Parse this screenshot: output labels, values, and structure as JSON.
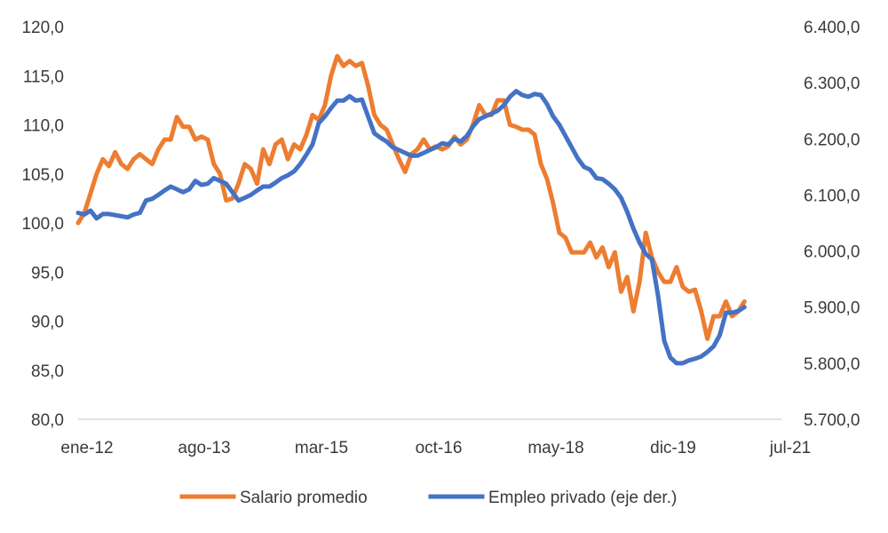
{
  "chart_data": {
    "type": "line",
    "title": "",
    "xlabel": "",
    "ylabel_left": "",
    "ylabel_right": "",
    "x_tick_labels": [
      "ene-12",
      "ago-13",
      "mar-15",
      "oct-16",
      "may-18",
      "dic-19",
      "jul-21"
    ],
    "x_range_months": [
      0,
      114
    ],
    "y_left": {
      "range": [
        80,
        120
      ],
      "ticks": [
        80,
        85,
        90,
        95,
        100,
        105,
        110,
        115,
        120
      ],
      "tick_labels": [
        "80,0",
        "85,0",
        "90,0",
        "95,0",
        "100,0",
        "105,0",
        "110,0",
        "115,0",
        "120,0"
      ]
    },
    "y_right": {
      "range": [
        5700,
        6400
      ],
      "ticks": [
        5700,
        5800,
        5900,
        6000,
        6100,
        6200,
        6300,
        6400
      ],
      "tick_labels": [
        "5.700,0",
        "5.800,0",
        "5.900,0",
        "6.000,0",
        "6.100,0",
        "6.200,0",
        "6.300,0",
        "6.400,0"
      ]
    },
    "grid": false,
    "legend_position": "bottom",
    "series": [
      {
        "name": "Salario promedio",
        "axis": "left",
        "color": "#ED7D31",
        "points": [
          [
            0,
            100.0
          ],
          [
            1,
            101.0
          ],
          [
            2,
            103.0
          ],
          [
            3,
            105.0
          ],
          [
            4,
            106.5
          ],
          [
            5,
            105.8
          ],
          [
            6,
            107.2
          ],
          [
            7,
            106.0
          ],
          [
            8,
            105.5
          ],
          [
            9,
            106.5
          ],
          [
            10,
            107.0
          ],
          [
            11,
            106.5
          ],
          [
            12,
            106.0
          ],
          [
            13,
            107.5
          ],
          [
            14,
            108.5
          ],
          [
            15,
            108.5
          ],
          [
            16,
            110.8
          ],
          [
            17,
            109.8
          ],
          [
            18,
            109.8
          ],
          [
            19,
            108.5
          ],
          [
            20,
            108.8
          ],
          [
            21,
            108.5
          ],
          [
            22,
            106.0
          ],
          [
            23,
            105.0
          ],
          [
            24,
            102.3
          ],
          [
            25,
            102.5
          ],
          [
            26,
            104.0
          ],
          [
            27,
            106.0
          ],
          [
            28,
            105.5
          ],
          [
            29,
            104.0
          ],
          [
            30,
            107.5
          ],
          [
            31,
            106.0
          ],
          [
            32,
            108.0
          ],
          [
            33,
            108.5
          ],
          [
            34,
            106.5
          ],
          [
            35,
            108.0
          ],
          [
            36,
            107.5
          ],
          [
            37,
            109.0
          ],
          [
            38,
            111.0
          ],
          [
            39,
            110.5
          ],
          [
            40,
            112.0
          ],
          [
            41,
            115.0
          ],
          [
            42,
            117.0
          ],
          [
            43,
            116.0
          ],
          [
            44,
            116.5
          ],
          [
            45,
            116.0
          ],
          [
            46,
            116.3
          ],
          [
            47,
            114.0
          ],
          [
            48,
            111.0
          ],
          [
            49,
            110.0
          ],
          [
            50,
            109.5
          ],
          [
            51,
            108.0
          ],
          [
            52,
            106.5
          ],
          [
            53,
            105.2
          ],
          [
            54,
            107.0
          ],
          [
            55,
            107.5
          ],
          [
            56,
            108.5
          ],
          [
            57,
            107.5
          ],
          [
            58,
            107.8
          ],
          [
            59,
            107.5
          ],
          [
            60,
            107.8
          ],
          [
            61,
            108.8
          ],
          [
            62,
            108.0
          ],
          [
            63,
            108.5
          ],
          [
            64,
            110.0
          ],
          [
            65,
            112.0
          ],
          [
            66,
            111.0
          ],
          [
            67,
            111.0
          ],
          [
            68,
            112.5
          ],
          [
            69,
            112.5
          ],
          [
            70,
            110.0
          ],
          [
            71,
            109.8
          ],
          [
            72,
            109.5
          ],
          [
            73,
            109.5
          ],
          [
            74,
            109.0
          ],
          [
            75,
            106.0
          ],
          [
            76,
            104.5
          ],
          [
            77,
            102.0
          ],
          [
            78,
            99.0
          ],
          [
            79,
            98.5
          ],
          [
            80,
            97.0
          ],
          [
            81,
            97.0
          ],
          [
            82,
            97.0
          ],
          [
            83,
            98.0
          ],
          [
            84,
            96.5
          ],
          [
            85,
            97.5
          ],
          [
            86,
            95.5
          ],
          [
            87,
            97.0
          ],
          [
            88,
            93.0
          ],
          [
            89,
            94.5
          ],
          [
            90,
            91.0
          ],
          [
            91,
            94.0
          ],
          [
            92,
            99.0
          ],
          [
            93,
            96.5
          ],
          [
            94,
            95.0
          ],
          [
            95,
            94.0
          ],
          [
            96,
            94.0
          ],
          [
            97,
            95.5
          ],
          [
            98,
            93.5
          ],
          [
            99,
            93.0
          ],
          [
            100,
            93.2
          ],
          [
            101,
            91.0
          ],
          [
            102,
            88.2
          ],
          [
            103,
            90.5
          ],
          [
            104,
            90.5
          ],
          [
            105,
            92.0
          ],
          [
            106,
            90.5
          ],
          [
            107,
            91.0
          ],
          [
            108,
            92.0
          ]
        ]
      },
      {
        "name": "Empleo privado (eje der.)",
        "axis": "right",
        "color": "#4472C4",
        "points": [
          [
            0,
            6068
          ],
          [
            1,
            6065
          ],
          [
            2,
            6072
          ],
          [
            3,
            6058
          ],
          [
            4,
            6066
          ],
          [
            5,
            6066
          ],
          [
            6,
            6064
          ],
          [
            7,
            6062
          ],
          [
            8,
            6060
          ],
          [
            9,
            6065
          ],
          [
            10,
            6068
          ],
          [
            11,
            6090
          ],
          [
            12,
            6093
          ],
          [
            13,
            6100
          ],
          [
            14,
            6108
          ],
          [
            15,
            6115
          ],
          [
            16,
            6110
          ],
          [
            17,
            6105
          ],
          [
            18,
            6110
          ],
          [
            19,
            6125
          ],
          [
            20,
            6118
          ],
          [
            21,
            6120
          ],
          [
            22,
            6130
          ],
          [
            23,
            6125
          ],
          [
            24,
            6120
          ],
          [
            25,
            6105
          ],
          [
            26,
            6090
          ],
          [
            27,
            6095
          ],
          [
            28,
            6100
          ],
          [
            29,
            6108
          ],
          [
            30,
            6115
          ],
          [
            31,
            6115
          ],
          [
            32,
            6122
          ],
          [
            33,
            6130
          ],
          [
            34,
            6135
          ],
          [
            35,
            6142
          ],
          [
            36,
            6155
          ],
          [
            37,
            6172
          ],
          [
            38,
            6190
          ],
          [
            39,
            6228
          ],
          [
            40,
            6240
          ],
          [
            41,
            6255
          ],
          [
            42,
            6268
          ],
          [
            43,
            6268
          ],
          [
            44,
            6276
          ],
          [
            45,
            6268
          ],
          [
            46,
            6270
          ],
          [
            47,
            6240
          ],
          [
            48,
            6210
          ],
          [
            49,
            6202
          ],
          [
            50,
            6195
          ],
          [
            51,
            6185
          ],
          [
            52,
            6180
          ],
          [
            53,
            6175
          ],
          [
            54,
            6170
          ],
          [
            55,
            6170
          ],
          [
            56,
            6175
          ],
          [
            57,
            6180
          ],
          [
            58,
            6185
          ],
          [
            59,
            6192
          ],
          [
            60,
            6190
          ],
          [
            61,
            6200
          ],
          [
            62,
            6195
          ],
          [
            63,
            6205
          ],
          [
            64,
            6222
          ],
          [
            65,
            6235
          ],
          [
            66,
            6240
          ],
          [
            67,
            6245
          ],
          [
            68,
            6250
          ],
          [
            69,
            6260
          ],
          [
            70,
            6275
          ],
          [
            71,
            6285
          ],
          [
            72,
            6278
          ],
          [
            73,
            6275
          ],
          [
            74,
            6280
          ],
          [
            75,
            6278
          ],
          [
            76,
            6262
          ],
          [
            77,
            6240
          ],
          [
            78,
            6225
          ],
          [
            79,
            6205
          ],
          [
            80,
            6185
          ],
          [
            81,
            6165
          ],
          [
            82,
            6150
          ],
          [
            83,
            6145
          ],
          [
            84,
            6130
          ],
          [
            85,
            6128
          ],
          [
            86,
            6120
          ],
          [
            87,
            6110
          ],
          [
            88,
            6095
          ],
          [
            89,
            6070
          ],
          [
            90,
            6040
          ],
          [
            91,
            6015
          ],
          [
            92,
            5995
          ],
          [
            93,
            5985
          ],
          [
            94,
            5920
          ],
          [
            95,
            5840
          ],
          [
            96,
            5810
          ],
          [
            97,
            5800
          ],
          [
            98,
            5800
          ],
          [
            99,
            5805
          ],
          [
            100,
            5808
          ],
          [
            101,
            5812
          ],
          [
            102,
            5820
          ],
          [
            103,
            5830
          ],
          [
            104,
            5850
          ],
          [
            105,
            5890
          ],
          [
            106,
            5890
          ],
          [
            107,
            5893
          ],
          [
            108,
            5900
          ]
        ]
      }
    ]
  }
}
